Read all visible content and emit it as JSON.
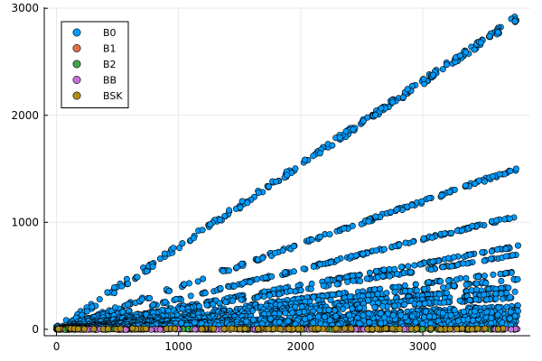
{
  "chart_data": {
    "type": "scatter",
    "xlim": [
      -100,
      3880
    ],
    "ylim": [
      -60,
      3010
    ],
    "x_ticks": [
      "0",
      "1000",
      "2000",
      "3000"
    ],
    "x_tick_values": [
      0,
      1000,
      2000,
      3000
    ],
    "y_ticks": [
      "0",
      "1000",
      "2000",
      "3000"
    ],
    "y_tick_values": [
      0,
      1000,
      2000,
      3000
    ],
    "grid": true,
    "legend_placement": "top-left",
    "series": [
      {
        "name": "B0",
        "color": "#009AFA",
        "description": "point clouds along several rays from origin",
        "bands": [
          {
            "x_end": 3780,
            "y_end": 2915
          },
          {
            "x_end": 3780,
            "y_end": 1505
          },
          {
            "x_end": 3780,
            "y_end": 1060
          },
          {
            "x_end": 3780,
            "y_end": 775
          },
          {
            "x_end": 3780,
            "y_end": 695
          },
          {
            "x_end": 3780,
            "y_end": 540
          },
          {
            "x_end": 3780,
            "y_end": 470
          },
          {
            "x_end": 3780,
            "y_end": 400
          },
          {
            "x_end": 3780,
            "y_end": 350
          },
          {
            "x_end": 3780,
            "y_end": 300
          },
          {
            "x_end": 3780,
            "y_end": 220
          },
          {
            "x_end": 3780,
            "y_end": 180
          },
          {
            "x_end": 3780,
            "y_end": 140
          },
          {
            "x_end": 3780,
            "y_end": 100
          },
          {
            "x_end": 3780,
            "y_end": 70
          },
          {
            "x_end": 3780,
            "y_end": 40
          }
        ],
        "x_range": [
          0,
          3780
        ]
      },
      {
        "name": "B1",
        "color": "#E36F47",
        "y_value": 0,
        "x_range": [
          0,
          3780
        ]
      },
      {
        "name": "B2",
        "color": "#3EA44E",
        "y_value": 0,
        "x_range": [
          0,
          3780
        ]
      },
      {
        "name": "BB",
        "color": "#C371D2",
        "y_value": 0,
        "x_range": [
          0,
          3780
        ]
      },
      {
        "name": "BSK",
        "color": "#AC8E18",
        "y_value": 5,
        "x_range": [
          0,
          3780
        ]
      }
    ]
  }
}
